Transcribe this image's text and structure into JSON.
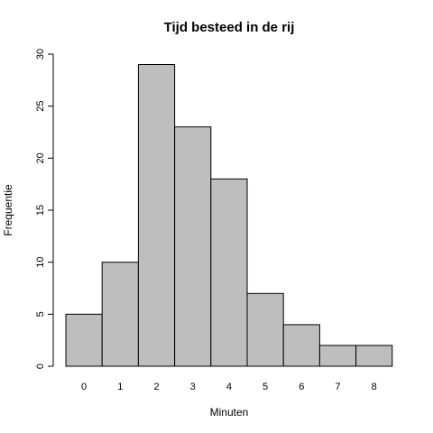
{
  "chart_data": {
    "type": "bar",
    "title": "Tijd besteed in de rij",
    "xlabel": "Minuten",
    "ylabel": "Frequentie",
    "categories": [
      "0",
      "1",
      "2",
      "3",
      "4",
      "5",
      "6",
      "7",
      "8"
    ],
    "values": [
      5,
      10,
      29,
      23,
      18,
      7,
      4,
      2,
      2
    ],
    "ylim": [
      0,
      30
    ],
    "yticks": [
      0,
      5,
      10,
      15,
      20,
      25,
      30
    ],
    "grid": false,
    "colors": {
      "bar_fill": "#bebebe",
      "bar_stroke": "#000000"
    }
  }
}
